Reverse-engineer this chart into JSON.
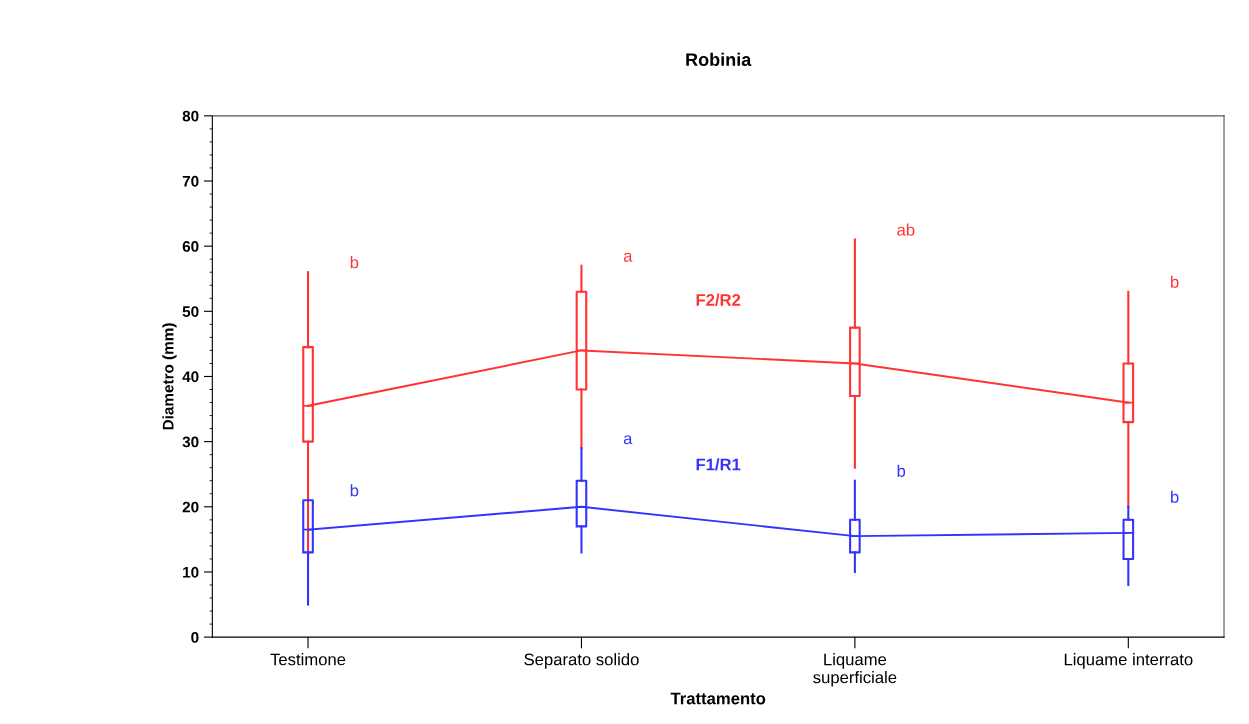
{
  "chart_data": {
    "type": "box",
    "title": "Robinia",
    "xlabel": "Trattamento",
    "ylabel": "Diametro (mm)",
    "categories": [
      "Testimone",
      "Separato solido",
      "Liquame\nsuperficiale",
      "Liquame interrato"
    ],
    "ylim": [
      0,
      80
    ],
    "yticks": [
      0,
      10,
      20,
      30,
      40,
      50,
      60,
      70,
      80
    ],
    "grid": false,
    "legend": false,
    "series": [
      {
        "name": "F2/R2",
        "color": "#ff3333",
        "boxes": [
          {
            "low": 12,
            "q1": 30,
            "median": 35.5,
            "q3": 44.5,
            "high": 56
          },
          {
            "low": 29,
            "q1": 38,
            "median": 44,
            "q3": 53,
            "high": 57
          },
          {
            "low": 26,
            "q1": 37,
            "median": 42,
            "q3": 47.5,
            "high": 61
          },
          {
            "low": 20,
            "q1": 33,
            "median": 36,
            "q3": 42,
            "high": 53
          }
        ]
      },
      {
        "name": "F1/R1",
        "color": "#3333ff",
        "boxes": [
          {
            "low": 5,
            "q1": 13,
            "median": 16.5,
            "q3": 21,
            "high": 21
          },
          {
            "low": 13,
            "q1": 17,
            "median": 20,
            "q3": 24,
            "high": 29
          },
          {
            "low": 10,
            "q1": 13,
            "median": 15.5,
            "q3": 18,
            "high": 24
          },
          {
            "low": 8,
            "q1": 12,
            "median": 16,
            "q3": 18,
            "high": 20
          }
        ]
      },
      {
        "type": "line",
        "color": "#ff3333",
        "values": [
          35.5,
          44,
          42,
          36
        ]
      },
      {
        "type": "line",
        "color": "#3333ff",
        "values": [
          16.5,
          20,
          15.5,
          16
        ]
      }
    ],
    "annotations": [
      "b",
      "a",
      "ab",
      "b",
      "b",
      "a",
      "b",
      "b"
    ]
  }
}
